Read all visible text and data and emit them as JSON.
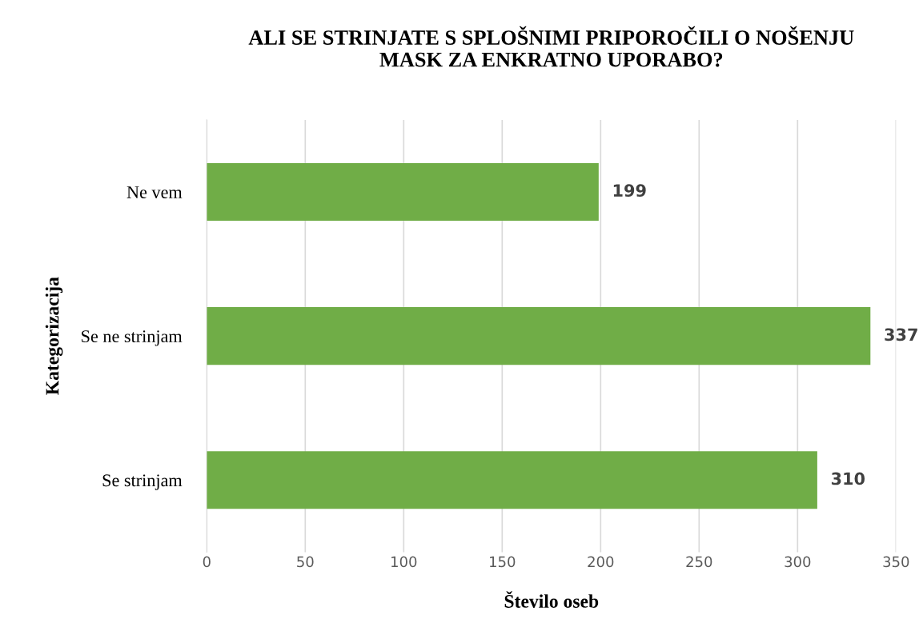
{
  "chart_data": {
    "type": "bar",
    "orientation": "horizontal",
    "title": "ALI SE STRINJATE S SPLOŠNIMI PRIPOROČILI O NOŠENJU\nMASK ZA ENKRATNO UPORABO?",
    "xlabel": "Število oseb",
    "ylabel": "Kategorizacija",
    "categories": [
      "Ne vem",
      "Se ne strinjam",
      "Se strinjam"
    ],
    "values": [
      199,
      337,
      310
    ],
    "color": "#70ad47",
    "xlim": [
      0,
      350
    ],
    "xticks": [
      0,
      50,
      100,
      150,
      200,
      250,
      300,
      350
    ],
    "grid": "x",
    "data_labels": true
  }
}
